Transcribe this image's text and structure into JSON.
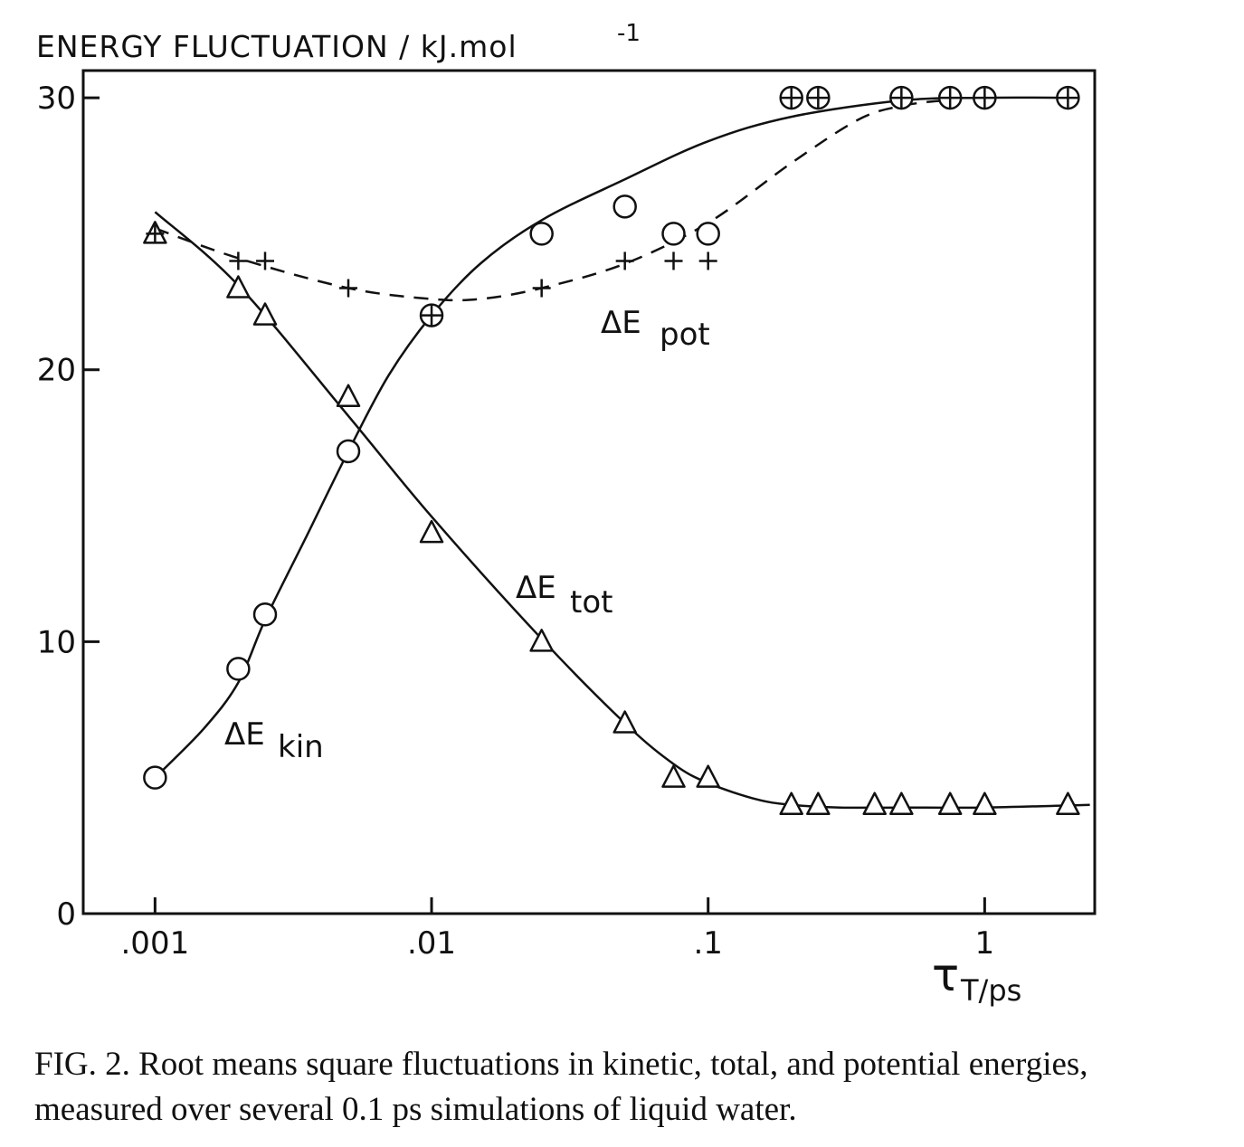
{
  "chart_data": {
    "type": "scatter",
    "title": "",
    "ylabel": "ENERGY FLUCTUATION / kJ.mol",
    "ylabel_exponent": "-1",
    "xlabel": "τ",
    "xlabel_sub": "T/ps",
    "x_scale": "log",
    "xlim": [
      0.00055,
      2.5
    ],
    "ylim": [
      0,
      31
    ],
    "x_ticks": [
      0.001,
      0.01,
      0.1,
      1
    ],
    "x_tick_labels": [
      ".001",
      ".01",
      ".1",
      "1"
    ],
    "y_ticks": [
      0,
      10,
      20,
      30
    ],
    "y_tick_labels": [
      "0",
      "10",
      "20",
      "30"
    ],
    "grid": false,
    "series": [
      {
        "name": "ΔE kin",
        "label_main": "ΔE",
        "label_sub": "kin",
        "marker": "circle",
        "line": "solid",
        "x": [
          0.001,
          0.002,
          0.0025,
          0.005,
          0.01,
          0.025,
          0.05,
          0.075,
          0.1,
          0.2,
          0.25,
          0.5,
          0.75,
          1,
          2
        ],
        "y": [
          5,
          9,
          11,
          17,
          22,
          25,
          26,
          25,
          25,
          30,
          30,
          30,
          30,
          30,
          30
        ],
        "curve_x": [
          0.001,
          0.0015,
          0.002,
          0.0025,
          0.0035,
          0.005,
          0.007,
          0.01,
          0.015,
          0.025,
          0.05,
          0.1,
          0.2,
          0.5,
          1,
          2
        ],
        "curve_y": [
          5,
          6.8,
          8.5,
          10.8,
          13.8,
          17,
          19.8,
          22,
          23.9,
          25.5,
          27,
          28.4,
          29.3,
          29.9,
          30,
          30
        ]
      },
      {
        "name": "ΔE tot",
        "label_main": "ΔE",
        "label_sub": "tot",
        "marker": "triangle",
        "line": "solid",
        "x": [
          0.001,
          0.002,
          0.0025,
          0.005,
          0.01,
          0.025,
          0.05,
          0.075,
          0.1,
          0.2,
          0.25,
          0.4,
          0.5,
          0.75,
          1,
          2
        ],
        "y": [
          25,
          23,
          22,
          19,
          14,
          10,
          7,
          5,
          5,
          4,
          4,
          4,
          4,
          4,
          4,
          4
        ],
        "curve_x": [
          0.001,
          0.002,
          0.005,
          0.01,
          0.025,
          0.05,
          0.075,
          0.1,
          0.15,
          0.2,
          0.3,
          0.5,
          1,
          2.4
        ],
        "curve_y": [
          25.8,
          23.1,
          18.3,
          14.6,
          10.1,
          7,
          5.5,
          4.8,
          4.2,
          4,
          3.9,
          3.9,
          3.9,
          4
        ]
      },
      {
        "name": "ΔE pot",
        "label_main": "ΔE",
        "label_sub": "pot",
        "marker": "plus",
        "line": "dashed",
        "x": [
          0.001,
          0.002,
          0.0025,
          0.005,
          0.01,
          0.025,
          0.05,
          0.075,
          0.1,
          0.2,
          0.25,
          0.5,
          0.75,
          1,
          2
        ],
        "y": [
          25,
          24,
          24,
          23,
          22,
          23,
          24,
          24,
          24,
          30,
          30,
          30,
          30,
          30,
          30
        ],
        "curve_x": [
          0.001,
          0.002,
          0.005,
          0.01,
          0.015,
          0.025,
          0.05,
          0.1,
          0.2,
          0.35,
          0.5,
          0.7
        ],
        "curve_y": [
          25.2,
          24.1,
          23,
          22.6,
          22.6,
          23,
          23.9,
          25.4,
          27.6,
          29.2,
          29.7,
          29.9
        ]
      }
    ]
  },
  "caption": "FIG. 2. Root means square fluctuations in kinetic, total, and potential energies, measured over several 0.1 ps simulations of liquid water."
}
